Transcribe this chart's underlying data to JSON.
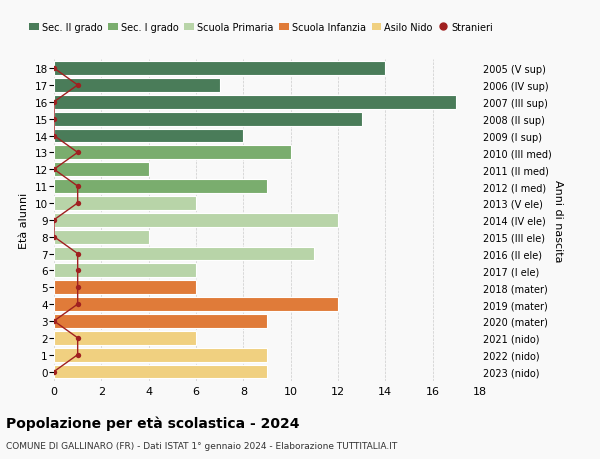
{
  "ages": [
    18,
    17,
    16,
    15,
    14,
    13,
    12,
    11,
    10,
    9,
    8,
    7,
    6,
    5,
    4,
    3,
    2,
    1,
    0
  ],
  "right_labels": [
    "2005 (V sup)",
    "2006 (IV sup)",
    "2007 (III sup)",
    "2008 (II sup)",
    "2009 (I sup)",
    "2010 (III med)",
    "2011 (II med)",
    "2012 (I med)",
    "2013 (V ele)",
    "2014 (IV ele)",
    "2015 (III ele)",
    "2016 (II ele)",
    "2017 (I ele)",
    "2018 (mater)",
    "2019 (mater)",
    "2020 (mater)",
    "2021 (nido)",
    "2022 (nido)",
    "2023 (nido)"
  ],
  "bar_values": [
    14,
    7,
    17,
    13,
    8,
    10,
    4,
    9,
    6,
    12,
    4,
    11,
    6,
    6,
    12,
    9,
    6,
    9,
    9
  ],
  "stranieri_values": [
    0,
    1,
    0,
    0,
    0,
    1,
    0,
    1,
    1,
    0,
    0,
    1,
    1,
    1,
    1,
    0,
    1,
    1,
    0
  ],
  "bar_colors": [
    "#4a7c59",
    "#4a7c59",
    "#4a7c59",
    "#4a7c59",
    "#4a7c59",
    "#7aad6e",
    "#7aad6e",
    "#7aad6e",
    "#b8d4a8",
    "#b8d4a8",
    "#b8d4a8",
    "#b8d4a8",
    "#b8d4a8",
    "#e07b39",
    "#e07b39",
    "#e07b39",
    "#f0d080",
    "#f0d080",
    "#f0d080"
  ],
  "categories": [
    "Sec. II grado",
    "Sec. I grado",
    "Scuola Primaria",
    "Scuola Infanzia",
    "Asilo Nido",
    "Stranieri"
  ],
  "legend_colors": [
    "#4a7c59",
    "#7aad6e",
    "#b8d4a8",
    "#e07b39",
    "#f0d080",
    "#b22222"
  ],
  "title": "Popolazione per età scolastica - 2024",
  "subtitle": "COMUNE DI GALLINARO (FR) - Dati ISTAT 1° gennaio 2024 - Elaborazione TUTTITALIA.IT",
  "ylabel": "Età alunni",
  "right_ylabel": "Anni di nascita",
  "xlim": [
    0,
    18
  ],
  "xticks": [
    0,
    2,
    4,
    6,
    8,
    10,
    12,
    14,
    16,
    18
  ],
  "bg_color": "#f9f9f9",
  "grid_color": "#cccccc",
  "stranieri_color": "#a02020",
  "bar_height": 0.82
}
